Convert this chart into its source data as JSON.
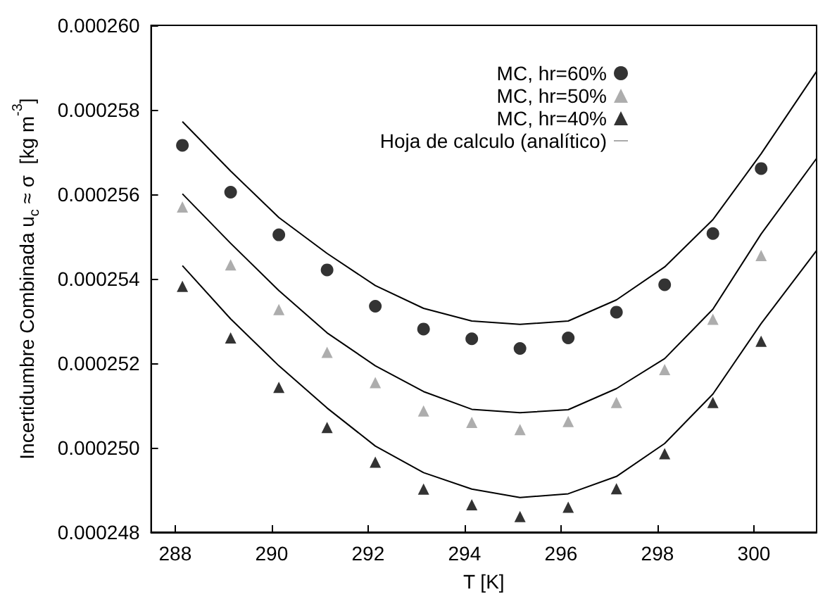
{
  "chart_data": {
    "type": "scatter",
    "xlabel": "T [K]",
    "ylabel": "Incertidumbre Combinada u$_{c}$ ≈ σ  [kg m$^{-3}$]",
    "x": [
      288.15,
      289.15,
      290.15,
      291.15,
      292.15,
      293.15,
      294.15,
      295.15,
      296.15,
      297.15,
      298.15,
      299.15,
      300.15
    ],
    "series": [
      {
        "name": "MC, hr=60%",
        "color": "#000000",
        "marker": "circle",
        "values": [
          0.00025716,
          0.00025605,
          0.00025504,
          0.00025421,
          0.00025335,
          0.00025281,
          0.00025258,
          0.00025235,
          0.0002526,
          0.00025321,
          0.00025386,
          0.00025507,
          0.00025661
        ]
      },
      {
        "name": "MC, hr=50%",
        "color": "#999999",
        "marker": "triangle",
        "values": [
          0.0002557,
          0.00025433,
          0.00025327,
          0.00025226,
          0.00025154,
          0.00025087,
          0.0002506,
          0.00025043,
          0.00025062,
          0.00025107,
          0.00025185,
          0.00025304,
          0.00025455
        ]
      },
      {
        "name": "MC, hr=40%",
        "color": "#000000",
        "marker": "triangle",
        "values": [
          0.00025382,
          0.0002526,
          0.00025143,
          0.00025048,
          0.00024966,
          0.00024902,
          0.00024865,
          0.00024837,
          0.00024859,
          0.00024903,
          0.00024986,
          0.00025107,
          0.00025252
        ]
      },
      {
        "name": "Hoja de calculo (analítico)",
        "type": "line",
        "color": "#000000",
        "marker": "none",
        "line_style": "solid",
        "x": [
          288.15,
          289.15,
          290.15,
          291.15,
          292.15,
          293.15,
          294.15,
          295.15,
          296.15,
          297.15,
          298.15,
          299.15,
          300.15,
          301.3
        ],
        "values": [
          0.00025772,
          0.00025655,
          0.00025545,
          0.0002546,
          0.00025384,
          0.0002533,
          0.000253,
          0.00025292,
          0.000253,
          0.0002535,
          0.00025428,
          0.0002554,
          0.00025696,
          0.00025891
        ]
      },
      {
        "type": "line",
        "color": "#000000",
        "marker": "none",
        "line_style": "solid",
        "x": [
          288.15,
          289.15,
          290.15,
          291.15,
          292.15,
          293.15,
          294.15,
          295.15,
          296.15,
          297.15,
          298.15,
          299.15,
          300.15,
          301.3
        ],
        "values": [
          0.00025601,
          0.00025484,
          0.00025372,
          0.00025272,
          0.00025194,
          0.00025133,
          0.00025091,
          0.00025083,
          0.0002509,
          0.0002514,
          0.00025211,
          0.00025328,
          0.00025506,
          0.00025685
        ]
      },
      {
        "type": "line",
        "color": "#000000",
        "marker": "none",
        "line_style": "solid",
        "x": [
          288.15,
          289.15,
          290.15,
          291.15,
          292.15,
          293.15,
          294.15,
          295.15,
          296.15,
          297.15,
          298.15,
          299.15,
          300.15,
          301.3
        ],
        "values": [
          0.00025431,
          0.00025305,
          0.00025194,
          0.00025094,
          0.00025004,
          0.00024941,
          0.00024902,
          0.00024882,
          0.00024891,
          0.00024932,
          0.0002501,
          0.00025127,
          0.00025294,
          0.00025467
        ]
      }
    ],
    "xlim": [
      287.5,
      301.3
    ],
    "xticks": [
      288,
      290,
      292,
      294,
      296,
      298,
      300
    ],
    "ylim": [
      0.000248,
      0.00026
    ],
    "yticks": [
      {
        "value": 0.000248,
        "label": "0.000248"
      },
      {
        "value": 0.00025,
        "label": "0.000250"
      },
      {
        "value": 0.000252,
        "label": "0.000252"
      },
      {
        "value": 0.000254,
        "label": "0.000254"
      },
      {
        "value": 0.000256,
        "label": "0.000256"
      },
      {
        "value": 0.000258,
        "label": "0.000258"
      },
      {
        "value": 0.00026,
        "label": "0.000260"
      }
    ],
    "grid": false,
    "legend": "top right"
  }
}
